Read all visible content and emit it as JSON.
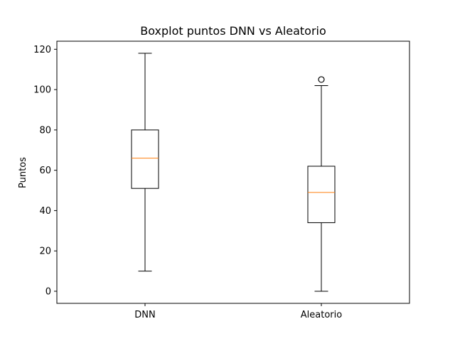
{
  "chart_data": {
    "type": "box",
    "title": "Boxplot puntos DNN vs Aleatorio",
    "xlabel": "",
    "ylabel": "Puntos",
    "ylim": [
      -6,
      124
    ],
    "yticks": [
      0,
      20,
      40,
      60,
      80,
      100,
      120
    ],
    "grid": false,
    "categories": [
      "DNN",
      "Aleatorio"
    ],
    "boxes": [
      {
        "label": "DNN",
        "whisker_low": 10,
        "q1": 51,
        "median": 66,
        "q3": 80,
        "whisker_high": 118,
        "outliers": []
      },
      {
        "label": "Aleatorio",
        "whisker_low": 0,
        "q1": 34,
        "median": 49,
        "q3": 62,
        "whisker_high": 102,
        "outliers": [
          105
        ]
      }
    ],
    "colors": {
      "box": "#000000",
      "median": "#ff7f0e",
      "whisker": "#000000",
      "outlier": "#000000"
    }
  }
}
